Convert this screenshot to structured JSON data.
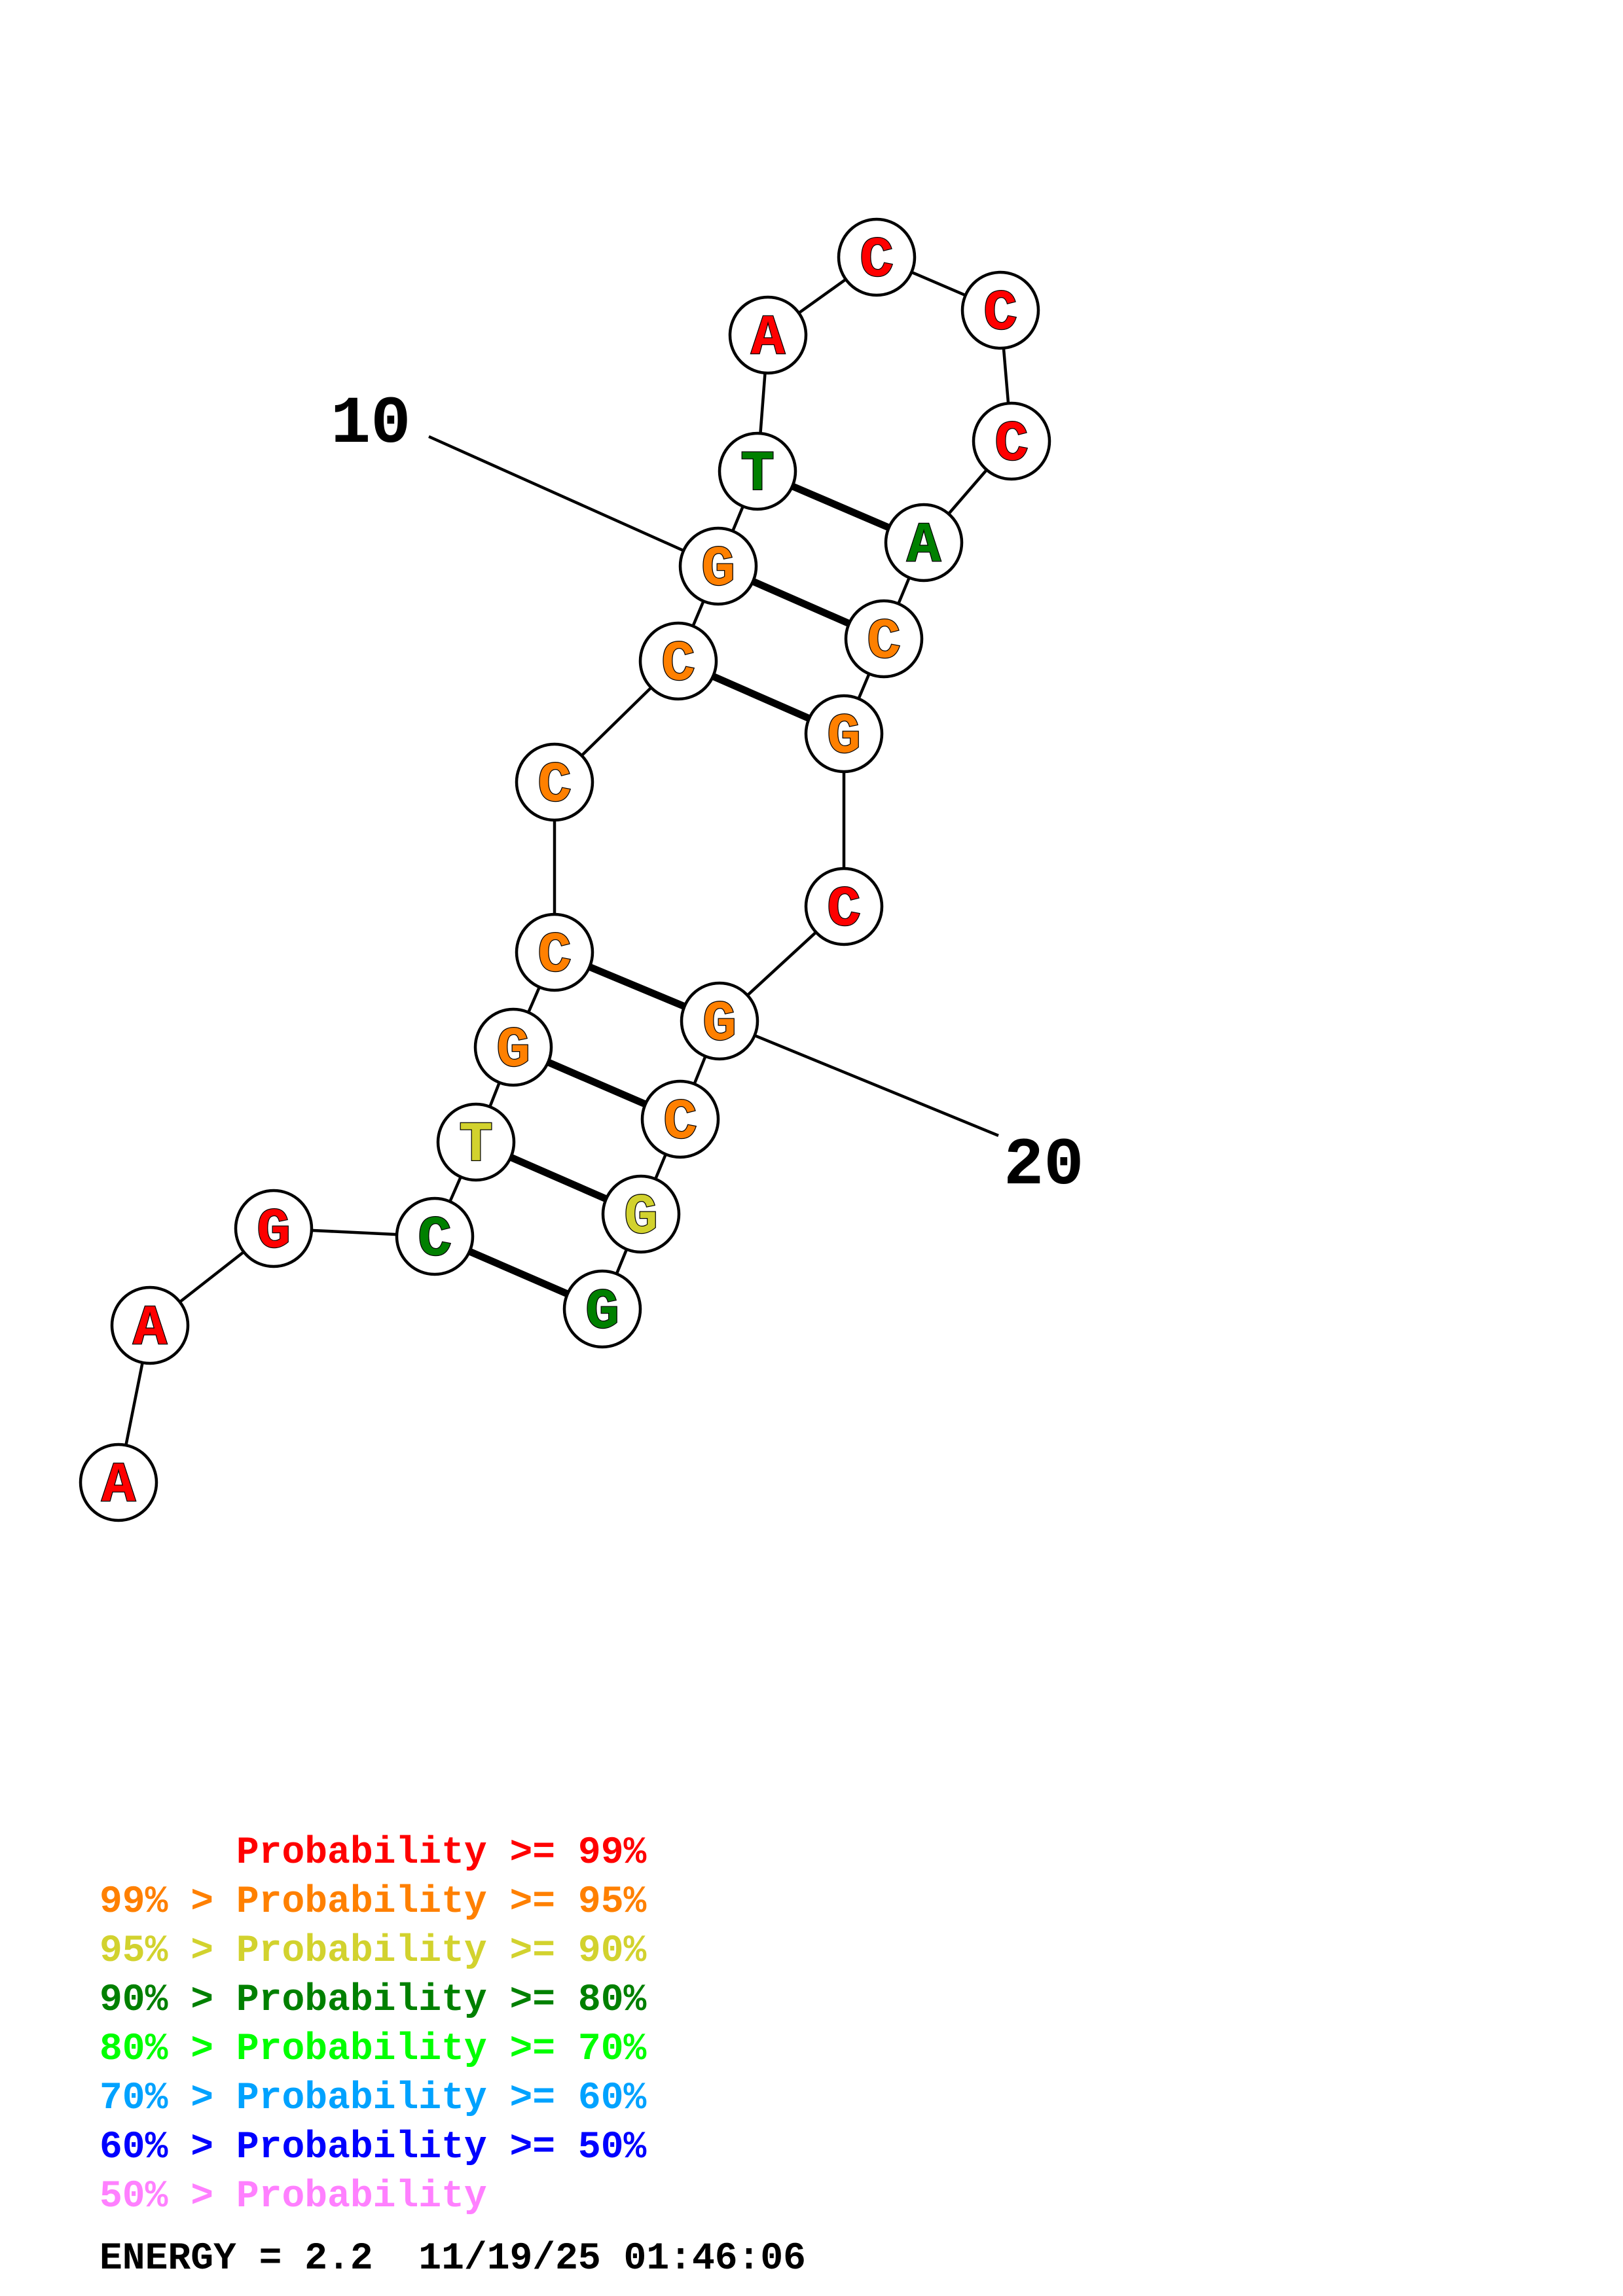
{
  "sequence": {
    "bases": [
      {
        "index": 1,
        "letter": "A",
        "prob_class": 0
      },
      {
        "index": 2,
        "letter": "A",
        "prob_class": 0
      },
      {
        "index": 3,
        "letter": "G",
        "prob_class": 0
      },
      {
        "index": 4,
        "letter": "C",
        "prob_class": 3
      },
      {
        "index": 5,
        "letter": "T",
        "prob_class": 2
      },
      {
        "index": 6,
        "letter": "G",
        "prob_class": 1
      },
      {
        "index": 7,
        "letter": "C",
        "prob_class": 1
      },
      {
        "index": 8,
        "letter": "C",
        "prob_class": 1
      },
      {
        "index": 9,
        "letter": "C",
        "prob_class": 1
      },
      {
        "index": 10,
        "letter": "G",
        "prob_class": 1
      },
      {
        "index": 11,
        "letter": "T",
        "prob_class": 3
      },
      {
        "index": 12,
        "letter": "A",
        "prob_class": 0
      },
      {
        "index": 13,
        "letter": "C",
        "prob_class": 0
      },
      {
        "index": 14,
        "letter": "C",
        "prob_class": 0
      },
      {
        "index": 15,
        "letter": "C",
        "prob_class": 0
      },
      {
        "index": 16,
        "letter": "A",
        "prob_class": 3
      },
      {
        "index": 17,
        "letter": "C",
        "prob_class": 1
      },
      {
        "index": 18,
        "letter": "G",
        "prob_class": 1
      },
      {
        "index": 19,
        "letter": "C",
        "prob_class": 0
      },
      {
        "index": 20,
        "letter": "G",
        "prob_class": 1
      },
      {
        "index": 21,
        "letter": "C",
        "prob_class": 1
      },
      {
        "index": 22,
        "letter": "G",
        "prob_class": 2
      },
      {
        "index": 23,
        "letter": "G",
        "prob_class": 3
      }
    ],
    "pairs": [
      [
        4,
        23
      ],
      [
        5,
        22
      ],
      [
        6,
        21
      ],
      [
        7,
        20
      ],
      [
        9,
        18
      ],
      [
        10,
        17
      ],
      [
        11,
        16
      ]
    ]
  },
  "position_labels": [
    {
      "text": "10",
      "base_index": 10
    },
    {
      "text": "20",
      "base_index": 20
    }
  ],
  "legend": {
    "lines": [
      {
        "text": "      Probability >= 99%",
        "color": "#ff0000"
      },
      {
        "text": "99% > Probability >= 95%",
        "color": "#ff8000"
      },
      {
        "text": "95% > Probability >= 90%",
        "color": "#d2d22e"
      },
      {
        "text": "90% > Probability >= 80%",
        "color": "#008000"
      },
      {
        "text": "80% > Probability >= 70%",
        "color": "#00ff00"
      },
      {
        "text": "70% > Probability >= 60%",
        "color": "#00a2ff"
      },
      {
        "text": "60% > Probability >= 50%",
        "color": "#0000ff"
      },
      {
        "text": "50% > Probability",
        "color": "#ff80ff"
      }
    ]
  },
  "energy_line": "ENERGY = 2.2  11/19/25 01:46:06"
}
